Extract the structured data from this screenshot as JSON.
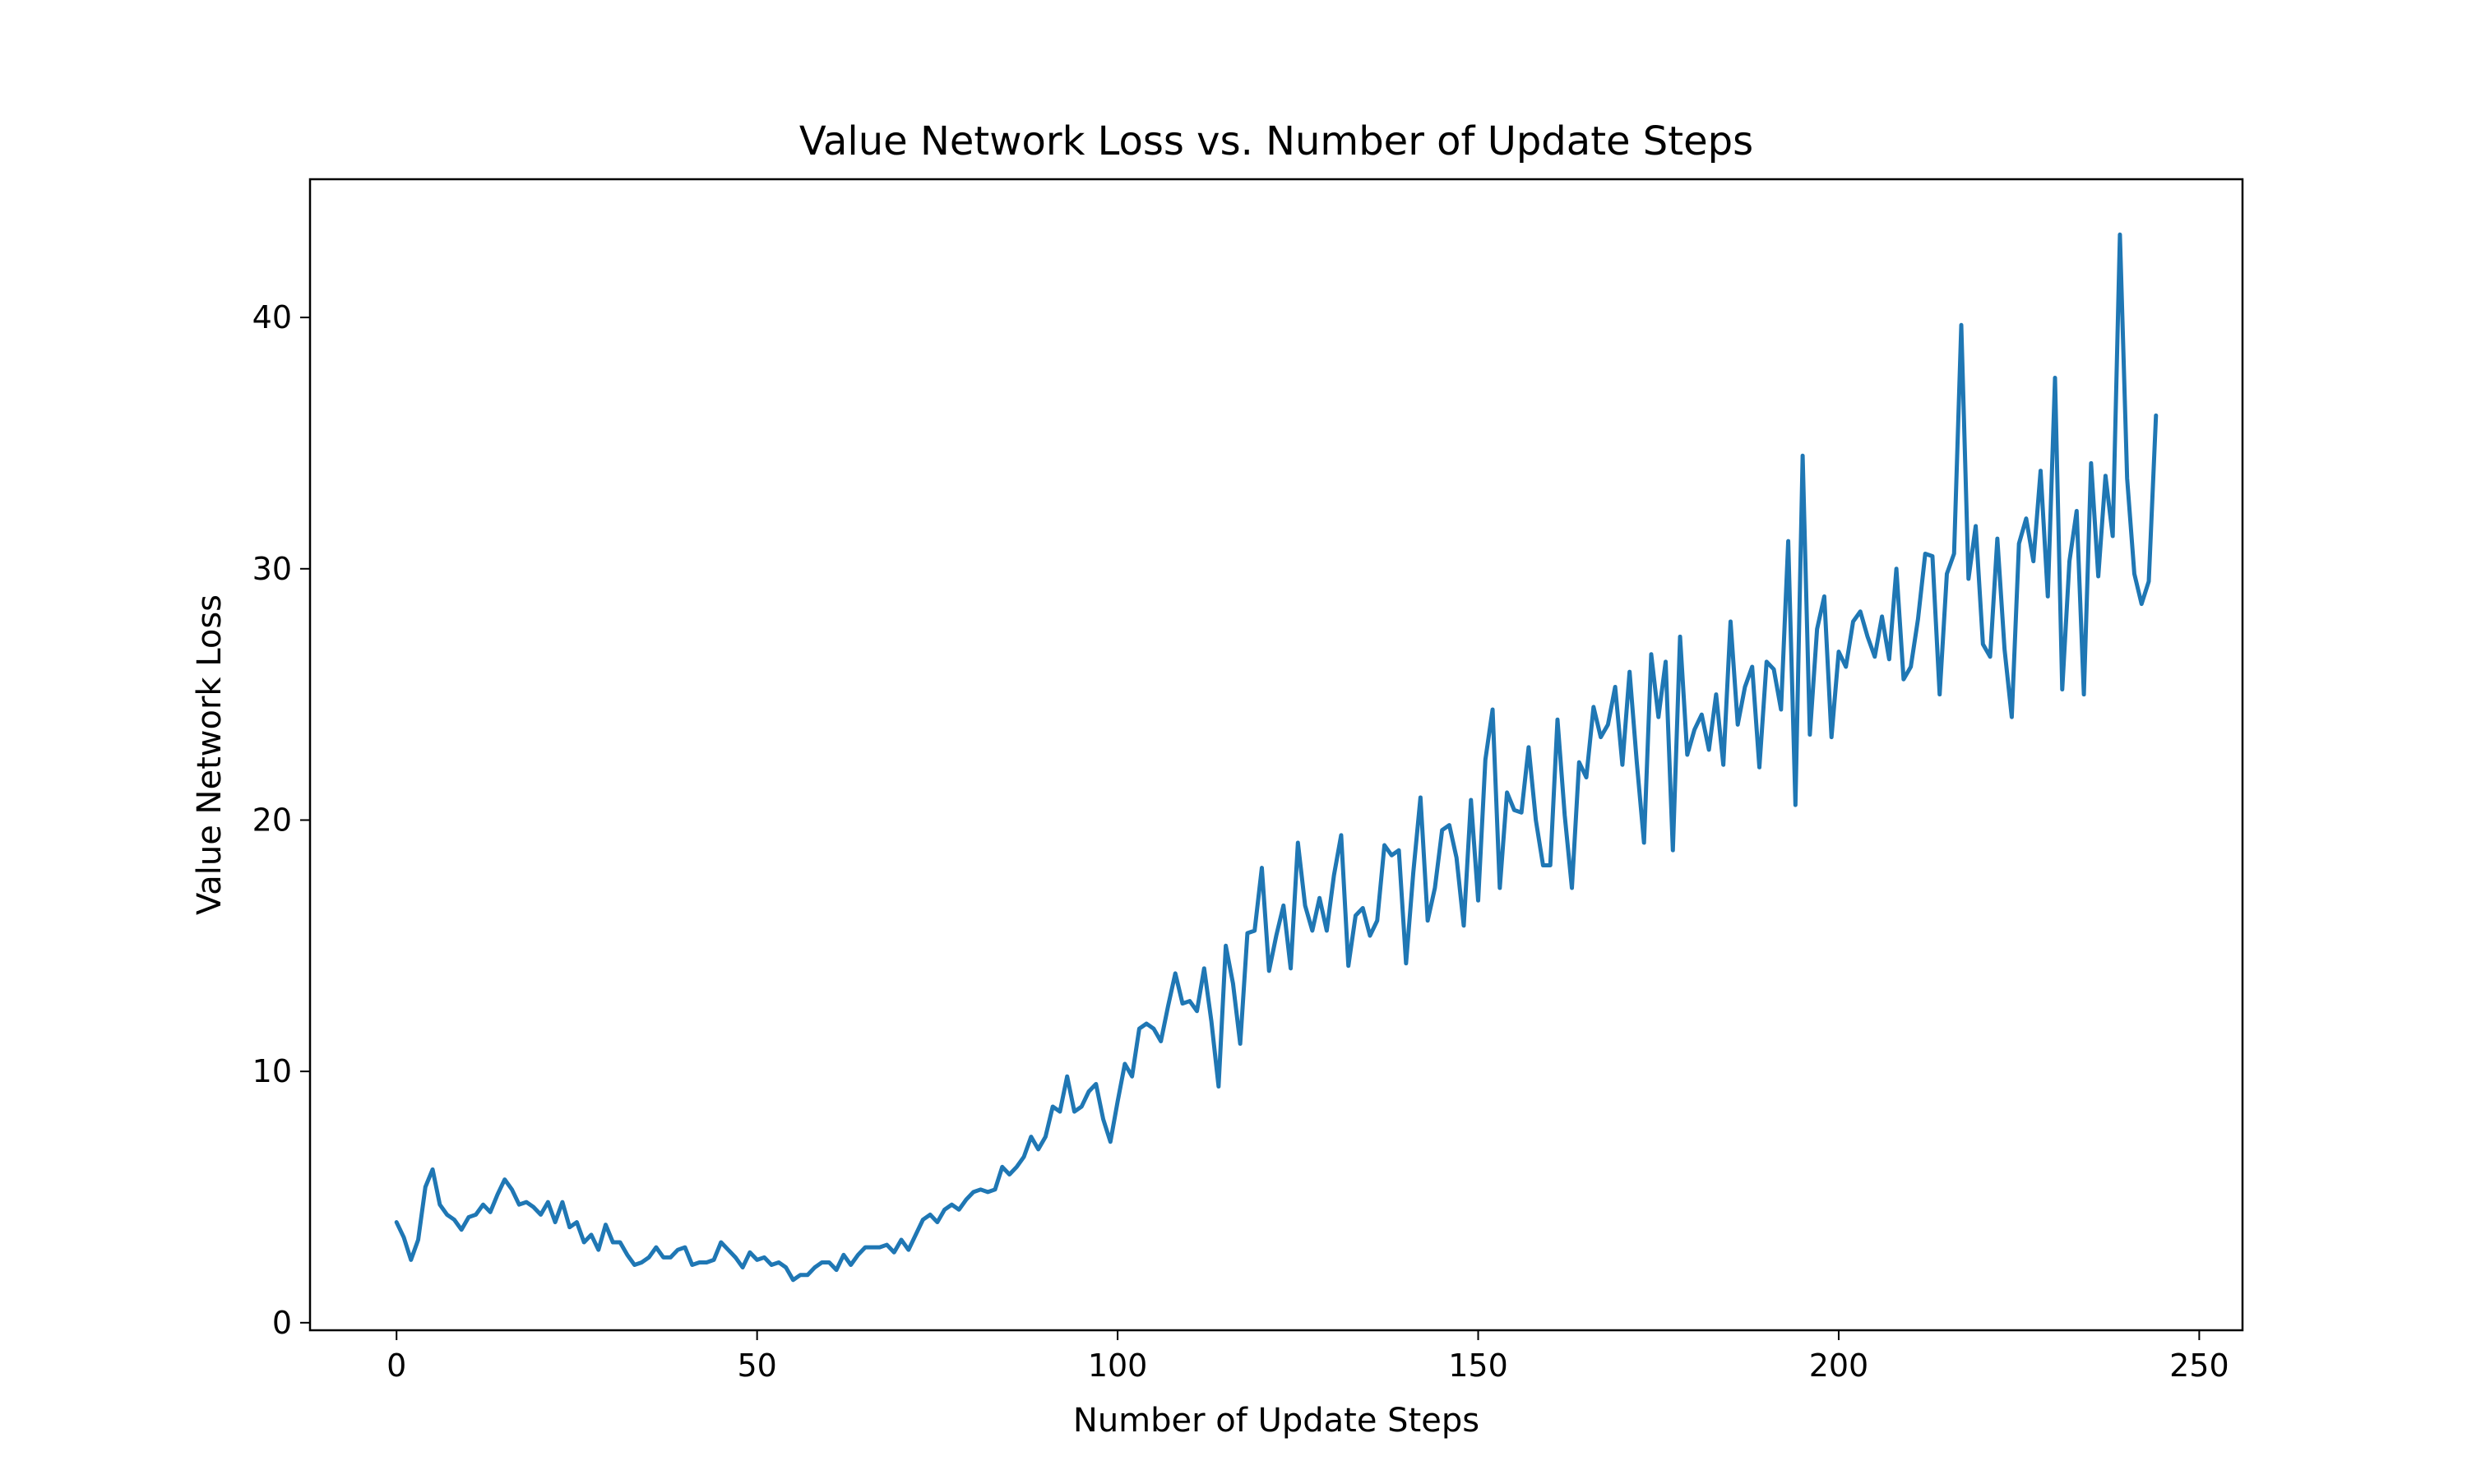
{
  "chart_data": {
    "type": "line",
    "title": "Value Network Loss vs. Number of Update Steps",
    "xlabel": "Number of Update Steps",
    "ylabel": "Value Network Loss",
    "xlim": [
      -12,
      256
    ],
    "ylim": [
      -0.3,
      45.5
    ],
    "xticks": [
      0,
      50,
      100,
      150,
      200,
      250
    ],
    "yticks": [
      0,
      10,
      20,
      30,
      40
    ],
    "grid": false,
    "legend": "none",
    "series_color": "#1f77b4",
    "series": [
      {
        "values": [
          4.0,
          3.4,
          2.5,
          3.3,
          5.4,
          6.1,
          4.7,
          4.3,
          4.1,
          3.7,
          4.2,
          4.3,
          4.7,
          4.4,
          5.1,
          5.7,
          5.3,
          4.7,
          4.8,
          4.6,
          4.3,
          4.8,
          4.0,
          4.8,
          3.8,
          4.0,
          3.2,
          3.5,
          2.9,
          3.9,
          3.2,
          3.2,
          2.7,
          2.3,
          2.4,
          2.6,
          3.0,
          2.6,
          2.6,
          2.9,
          3.0,
          2.3,
          2.4,
          2.4,
          2.5,
          3.2,
          2.9,
          2.6,
          2.2,
          2.8,
          2.5,
          2.6,
          2.3,
          2.4,
          2.2,
          1.7,
          1.9,
          1.9,
          2.2,
          2.4,
          2.4,
          2.1,
          2.7,
          2.3,
          2.7,
          3.0,
          3.0,
          3.0,
          3.1,
          2.8,
          3.3,
          2.9,
          3.5,
          4.1,
          4.3,
          4.0,
          4.5,
          4.7,
          4.5,
          4.9,
          5.2,
          5.3,
          5.2,
          5.3,
          6.2,
          5.9,
          6.2,
          6.6,
          7.4,
          6.9,
          7.4,
          8.6,
          8.4,
          9.8,
          8.4,
          8.6,
          9.2,
          9.5,
          8.1,
          7.2,
          8.8,
          10.3,
          9.8,
          11.7,
          11.9,
          11.7,
          11.2,
          12.6,
          13.9,
          12.7,
          12.8,
          12.4,
          14.1,
          12.0,
          9.4,
          15.0,
          13.5,
          11.1,
          15.5,
          15.6,
          18.1,
          14.0,
          15.4,
          16.6,
          14.1,
          19.1,
          16.6,
          15.6,
          16.9,
          15.6,
          17.8,
          19.4,
          14.2,
          16.2,
          16.5,
          15.4,
          16.0,
          19.0,
          18.6,
          18.8,
          14.3,
          17.9,
          20.9,
          16.0,
          17.3,
          19.6,
          19.8,
          18.5,
          15.8,
          20.8,
          16.8,
          22.4,
          24.4,
          17.3,
          21.1,
          20.4,
          20.3,
          22.9,
          20.0,
          18.2,
          18.2,
          24.0,
          20.2,
          17.3,
          22.3,
          21.7,
          24.5,
          23.3,
          23.8,
          25.3,
          22.2,
          25.9,
          22.3,
          19.1,
          26.6,
          24.1,
          26.3,
          18.8,
          27.3,
          22.6,
          23.6,
          24.2,
          22.8,
          25.0,
          22.2,
          27.9,
          23.8,
          25.3,
          26.1,
          22.1,
          26.3,
          26.0,
          24.4,
          31.1,
          20.6,
          34.5,
          23.4,
          27.6,
          28.9,
          23.3,
          26.7,
          26.1,
          27.9,
          28.3,
          27.3,
          26.5,
          28.1,
          26.4,
          30.0,
          25.6,
          26.1,
          28.0,
          30.6,
          30.5,
          25.0,
          29.8,
          30.6,
          39.7,
          29.6,
          31.7,
          27.0,
          26.5,
          31.2,
          26.8,
          24.1,
          31.0,
          32.0,
          30.3,
          33.9,
          28.9,
          37.6,
          25.2,
          30.3,
          32.3,
          25.0,
          34.2,
          29.7,
          33.7,
          31.3,
          43.3,
          33.6,
          29.8,
          28.6,
          29.5,
          36.1
        ]
      }
    ]
  }
}
